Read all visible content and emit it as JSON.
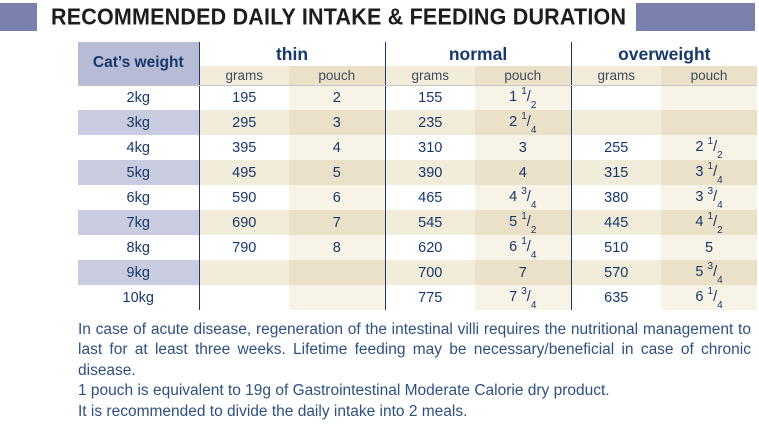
{
  "title": "RECOMMENDED DAILY INTAKE & FEEDING DURATION",
  "table": {
    "weight_header": "Cat’s weight",
    "groups": [
      {
        "label": "thin",
        "sub": [
          "grams",
          "pouch"
        ]
      },
      {
        "label": "normal",
        "sub": [
          "grams",
          "pouch"
        ]
      },
      {
        "label": "overweight",
        "sub": [
          "grams",
          "pouch"
        ]
      }
    ],
    "rows": [
      {
        "weight": "2kg",
        "cells": [
          "195",
          "2",
          "155",
          "1 1/2",
          "",
          ""
        ]
      },
      {
        "weight": "3kg",
        "cells": [
          "295",
          "3",
          "235",
          "2 1/4",
          "",
          ""
        ]
      },
      {
        "weight": "4kg",
        "cells": [
          "395",
          "4",
          "310",
          "3",
          "255",
          "2 1/2"
        ]
      },
      {
        "weight": "5kg",
        "cells": [
          "495",
          "5",
          "390",
          "4",
          "315",
          "3 1/4"
        ]
      },
      {
        "weight": "6kg",
        "cells": [
          "590",
          "6",
          "465",
          "4 3/4",
          "380",
          "3 3/4"
        ]
      },
      {
        "weight": "7kg",
        "cells": [
          "690",
          "7",
          "545",
          "5 1/2",
          "445",
          "4 1/2"
        ]
      },
      {
        "weight": "8kg",
        "cells": [
          "790",
          "8",
          "620",
          "6 1/4",
          "510",
          "5"
        ]
      },
      {
        "weight": "9kg",
        "cells": [
          "",
          "",
          "700",
          "7",
          "570",
          "5 3/4"
        ]
      },
      {
        "weight": "10kg",
        "cells": [
          "",
          "",
          "775",
          "7 3/4",
          "635",
          "6 1/4"
        ]
      }
    ]
  },
  "notes": [
    "In case of acute disease, regeneration of the intestinal villi requires the nutritional management to last for at least three weeks. Lifetime feeding may be necessary/beneficial in case of chronic disease.",
    "1 pouch is equivalent to 19g of Gastrointestinal Moderate Calorie dry product.",
    "It is recommended to divide the daily intake into 2 meals."
  ],
  "colors": {
    "accent": "#7a7fae",
    "navy": "#17386b",
    "title_text": "#1d1d1b",
    "note_text": "#2e517f",
    "header_lavender": "#b7bbd6",
    "row_lavender": "#c9cce0",
    "row_beige": "#f2ecdb",
    "pouch_beige": "#ebe1c8",
    "pouch_beige_light": "#f7f3e6",
    "subheader_text": "#3f4a5c",
    "divider": "#1b3a6b",
    "header_rule": "#c6c6c6"
  }
}
